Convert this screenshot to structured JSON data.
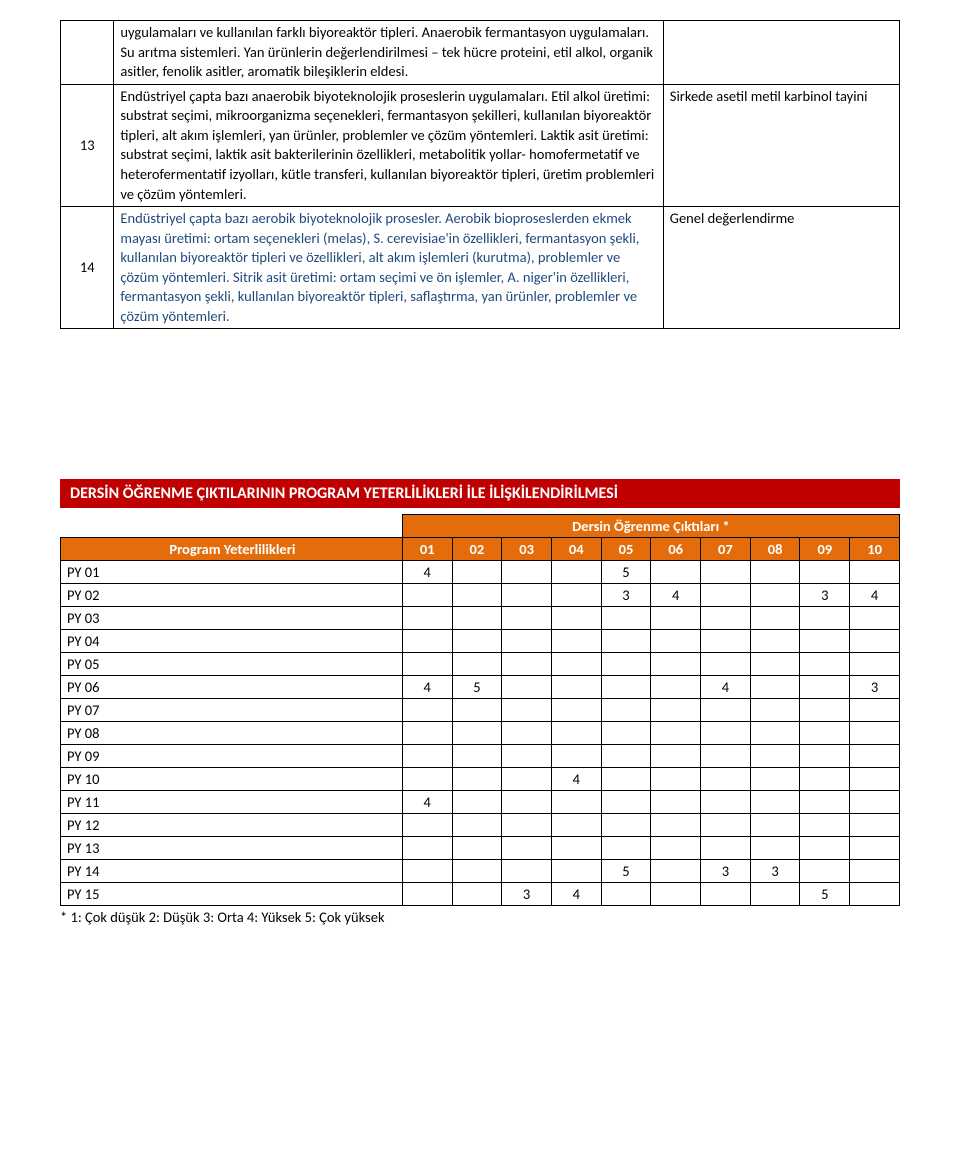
{
  "topTable": {
    "rows": [
      {
        "idx": "",
        "desc_plain": "uygulamaları ve kullanılan farklı biyoreaktör tipleri. Anaerobik fermantasyon uygulamaları. Su arıtma sistemleri. Yan ürünlerin değerlendirilmesi – tek hücre proteini, etil alkol, organik asitler, fenolik asitler, aromatik bileşiklerin eldesi.",
        "desc_blue": "",
        "note": ""
      },
      {
        "idx": "13",
        "desc_plain": "Endüstriyel çapta bazı anaerobik biyoteknolojik proseslerin uygulamaları. Etil alkol üretimi: substrat seçimi, mikroorganizma seçenekleri, fermantasyon şekilleri, kullanılan biyoreaktör tipleri, alt akım işlemleri, yan ürünler, problemler ve çözüm yöntemleri. Laktik asit üretimi: substrat seçimi, laktik asit bakterilerinin özellikleri, metabolitik yollar- homofermetatif ve heterofermentatif izyolları, kütle transferi, kullanılan biyoreaktör tipleri, üretim problemleri ve çözüm yöntemleri.",
        "desc_blue": "",
        "note": "Sirkede asetil metil karbinol tayini"
      },
      {
        "idx": "14",
        "desc_plain": "",
        "desc_blue": "Endüstriyel çapta bazı aerobik biyoteknolojik prosesler. Aerobik bioproseslerden ekmek mayası üretimi: ortam seçenekleri (melas), S. cerevisiae'in özellikleri, fermantasyon şekli, kullanılan biyoreaktör tipleri ve özellikleri, alt akım işlemleri (kurutma), problemler ve çözüm yöntemleri. Sitrik asit üretimi: ortam seçimi ve ön işlemler, A. niger'in özellikleri, fermantasyon şekli, kullanılan biyoreaktör tipleri, saflaştırma, yan ürünler, problemler ve çözüm yöntemleri.",
        "note": "Genel değerlendirme"
      }
    ]
  },
  "sectionTitle": "DERSİN ÖĞRENME ÇIKTILARININ PROGRAM YETERLİLİKLERİ İLE İLİŞKİLENDİRİLMESİ",
  "matrix": {
    "superheader": "Dersin Öğrenme Çıktıları *",
    "rowHeaderLabel": "Program Yeterlilikleri",
    "columns": [
      "01",
      "02",
      "03",
      "04",
      "05",
      "06",
      "07",
      "08",
      "09",
      "10"
    ],
    "rows": [
      {
        "label": "PY 01",
        "cells": [
          "4",
          "",
          "",
          "",
          "5",
          "",
          "",
          "",
          "",
          ""
        ]
      },
      {
        "label": "PY 02",
        "cells": [
          "",
          "",
          "",
          "",
          "3",
          "4",
          "",
          "",
          "3",
          "4"
        ]
      },
      {
        "label": "PY 03",
        "cells": [
          "",
          "",
          "",
          "",
          "",
          "",
          "",
          "",
          "",
          ""
        ]
      },
      {
        "label": "PY 04",
        "cells": [
          "",
          "",
          "",
          "",
          "",
          "",
          "",
          "",
          "",
          ""
        ]
      },
      {
        "label": "PY 05",
        "cells": [
          "",
          "",
          "",
          "",
          "",
          "",
          "",
          "",
          "",
          ""
        ]
      },
      {
        "label": "PY 06",
        "cells": [
          "4",
          "5",
          "",
          "",
          "",
          "",
          "4",
          "",
          "",
          "3"
        ]
      },
      {
        "label": "PY 07",
        "cells": [
          "",
          "",
          "",
          "",
          "",
          "",
          "",
          "",
          "",
          ""
        ]
      },
      {
        "label": "PY 08",
        "cells": [
          "",
          "",
          "",
          "",
          "",
          "",
          "",
          "",
          "",
          ""
        ]
      },
      {
        "label": "PY 09",
        "cells": [
          "",
          "",
          "",
          "",
          "",
          "",
          "",
          "",
          "",
          ""
        ]
      },
      {
        "label": "PY 10",
        "cells": [
          "",
          "",
          "",
          "4",
          "",
          "",
          "",
          "",
          "",
          ""
        ]
      },
      {
        "label": "PY 11",
        "cells": [
          "4",
          "",
          "",
          "",
          "",
          "",
          "",
          "",
          "",
          ""
        ]
      },
      {
        "label": "PY 12",
        "cells": [
          "",
          "",
          "",
          "",
          "",
          "",
          "",
          "",
          "",
          ""
        ]
      },
      {
        "label": "PY 13",
        "cells": [
          "",
          "",
          "",
          "",
          "",
          "",
          "",
          "",
          "",
          ""
        ]
      },
      {
        "label": "PY 14",
        "cells": [
          "",
          "",
          "",
          "",
          "5",
          "",
          "3",
          "3",
          "",
          ""
        ]
      },
      {
        "label": "PY 15",
        "cells": [
          "",
          "",
          "3",
          "4",
          "",
          "",
          "",
          "",
          "5",
          ""
        ]
      }
    ],
    "footnote": "* 1: Çok düşük 2: Düşük 3: Orta 4: Yüksek 5: Çok yüksek"
  },
  "colors": {
    "bannerBg": "#c00000",
    "matrixHeaderBg": "#e46c0a",
    "blueText": "#1f497d"
  }
}
